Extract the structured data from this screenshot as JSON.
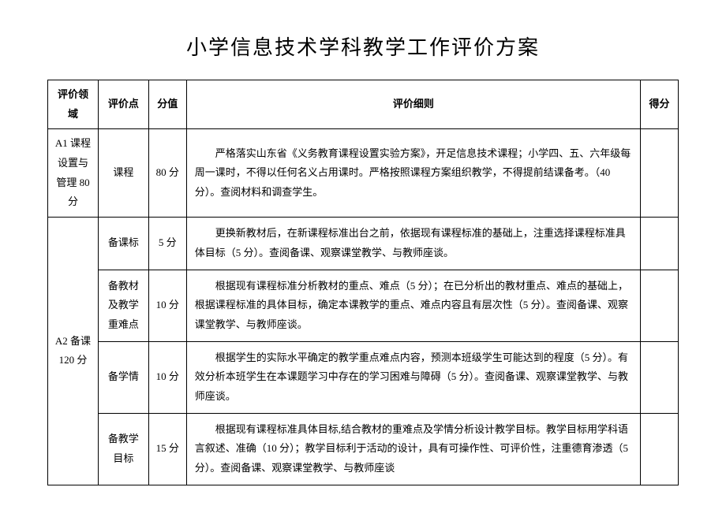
{
  "title": "小学信息技术学科教学工作评价方案",
  "headers": {
    "area": "评价领域",
    "point": "评价点",
    "score": "分值",
    "detail": "评价细则",
    "got": "得分"
  },
  "groups": [
    {
      "area": "A1 课程设置与管理 80 分",
      "rows": [
        {
          "point": "课程",
          "score": "80 分",
          "detail": "严格落实山东省《义务教育课程设置实验方案》，开足信息技术课程；小学四、五、六年级每周一课时，不得以任何名义占用课时。严格按照课程方案组织教学，不得提前结课备考。（40 分）。查阅材料和调查学生。",
          "got": ""
        }
      ]
    },
    {
      "area": "A2 备课 120 分",
      "rows": [
        {
          "point": "备课标",
          "score": "5 分",
          "detail": "更换新教材后，在新课程标准出台之前，依据现有课程标准的基础上，注重选择课程标准具体目标（5 分）。查阅备课、观察课堂教学、与教师座谈。",
          "got": ""
        },
        {
          "point": "备教材及教学重难点",
          "score": "10 分",
          "detail": "根据现有课程标准分析教材的重点、难点（5 分）；在已分析出的教材重点、难点的基础上，根据课程标准的具体目标，确定本课教学的重点、难点内容且有层次性（5 分）。查阅备课、观察课堂教学、与教师座谈。",
          "got": ""
        },
        {
          "point": "备学情",
          "score": "10 分",
          "detail": "根据学生的实际水平确定的教学重点难点内容，预测本班级学生可能达到的程度（5 分）。有效分析本班学生在本课题学习中存在的学习困难与障碍（5 分）。查阅备课、观察课堂教学、与教师座谈。",
          "got": ""
        },
        {
          "point": "备教学目标",
          "score": "15 分",
          "detail": "根据现有课程标准具体目标,结合教材的重难点及学情分析设计教学目标。教学目标用学科语言叙述、准确（10 分）；教学目标利于活动的设计，具有可操作性、可评价性，注重德育渗透（5 分）。查阅备课、观察课堂教学、与教师座谈",
          "got": ""
        }
      ]
    }
  ]
}
